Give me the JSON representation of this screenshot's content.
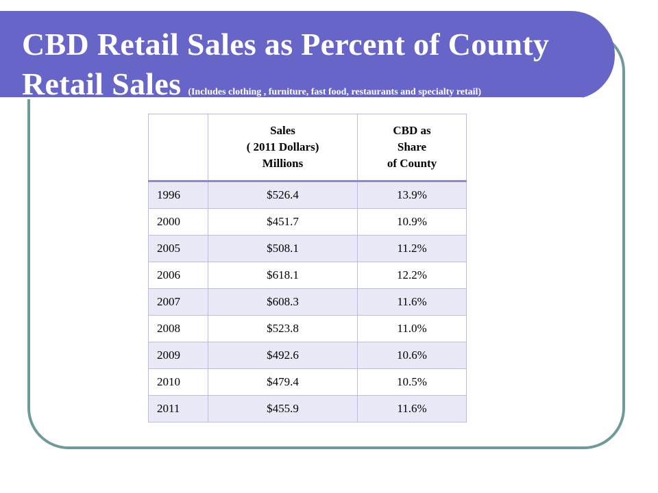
{
  "title": {
    "line1": "CBD Retail Sales as Percent of County",
    "line2": "Retail Sales",
    "subtitle": "(Includes clothing , furniture, fast food, restaurants and specialty retail)"
  },
  "table": {
    "headers": {
      "year": "",
      "sales": [
        "Sales",
        "( 2011 Dollars)",
        "Millions"
      ],
      "share": [
        "CBD as",
        "Share",
        "of County"
      ]
    },
    "rows": [
      {
        "year": "1996",
        "sales": "$526.4",
        "share": "13.9%"
      },
      {
        "year": "2000",
        "sales": "$451.7",
        "share": "10.9%"
      },
      {
        "year": "2005",
        "sales": "$508.1",
        "share": "11.2%"
      },
      {
        "year": "2006",
        "sales": "$618.1",
        "share": "12.2%"
      },
      {
        "year": "2007",
        "sales": "$608.3",
        "share": "11.6%"
      },
      {
        "year": "2008",
        "sales": "$523.8",
        "share": "11.0%"
      },
      {
        "year": "2009",
        "sales": "$492.6",
        "share": "10.6%"
      },
      {
        "year": "2010",
        "sales": "$479.4",
        "share": "10.5%"
      },
      {
        "year": "2011",
        "sales": "$455.9",
        "share": "11.6%"
      }
    ]
  },
  "colors": {
    "title_band": "#6865c9",
    "frame_border": "#6e9a99",
    "row_stripe": "#e8e8f7"
  }
}
